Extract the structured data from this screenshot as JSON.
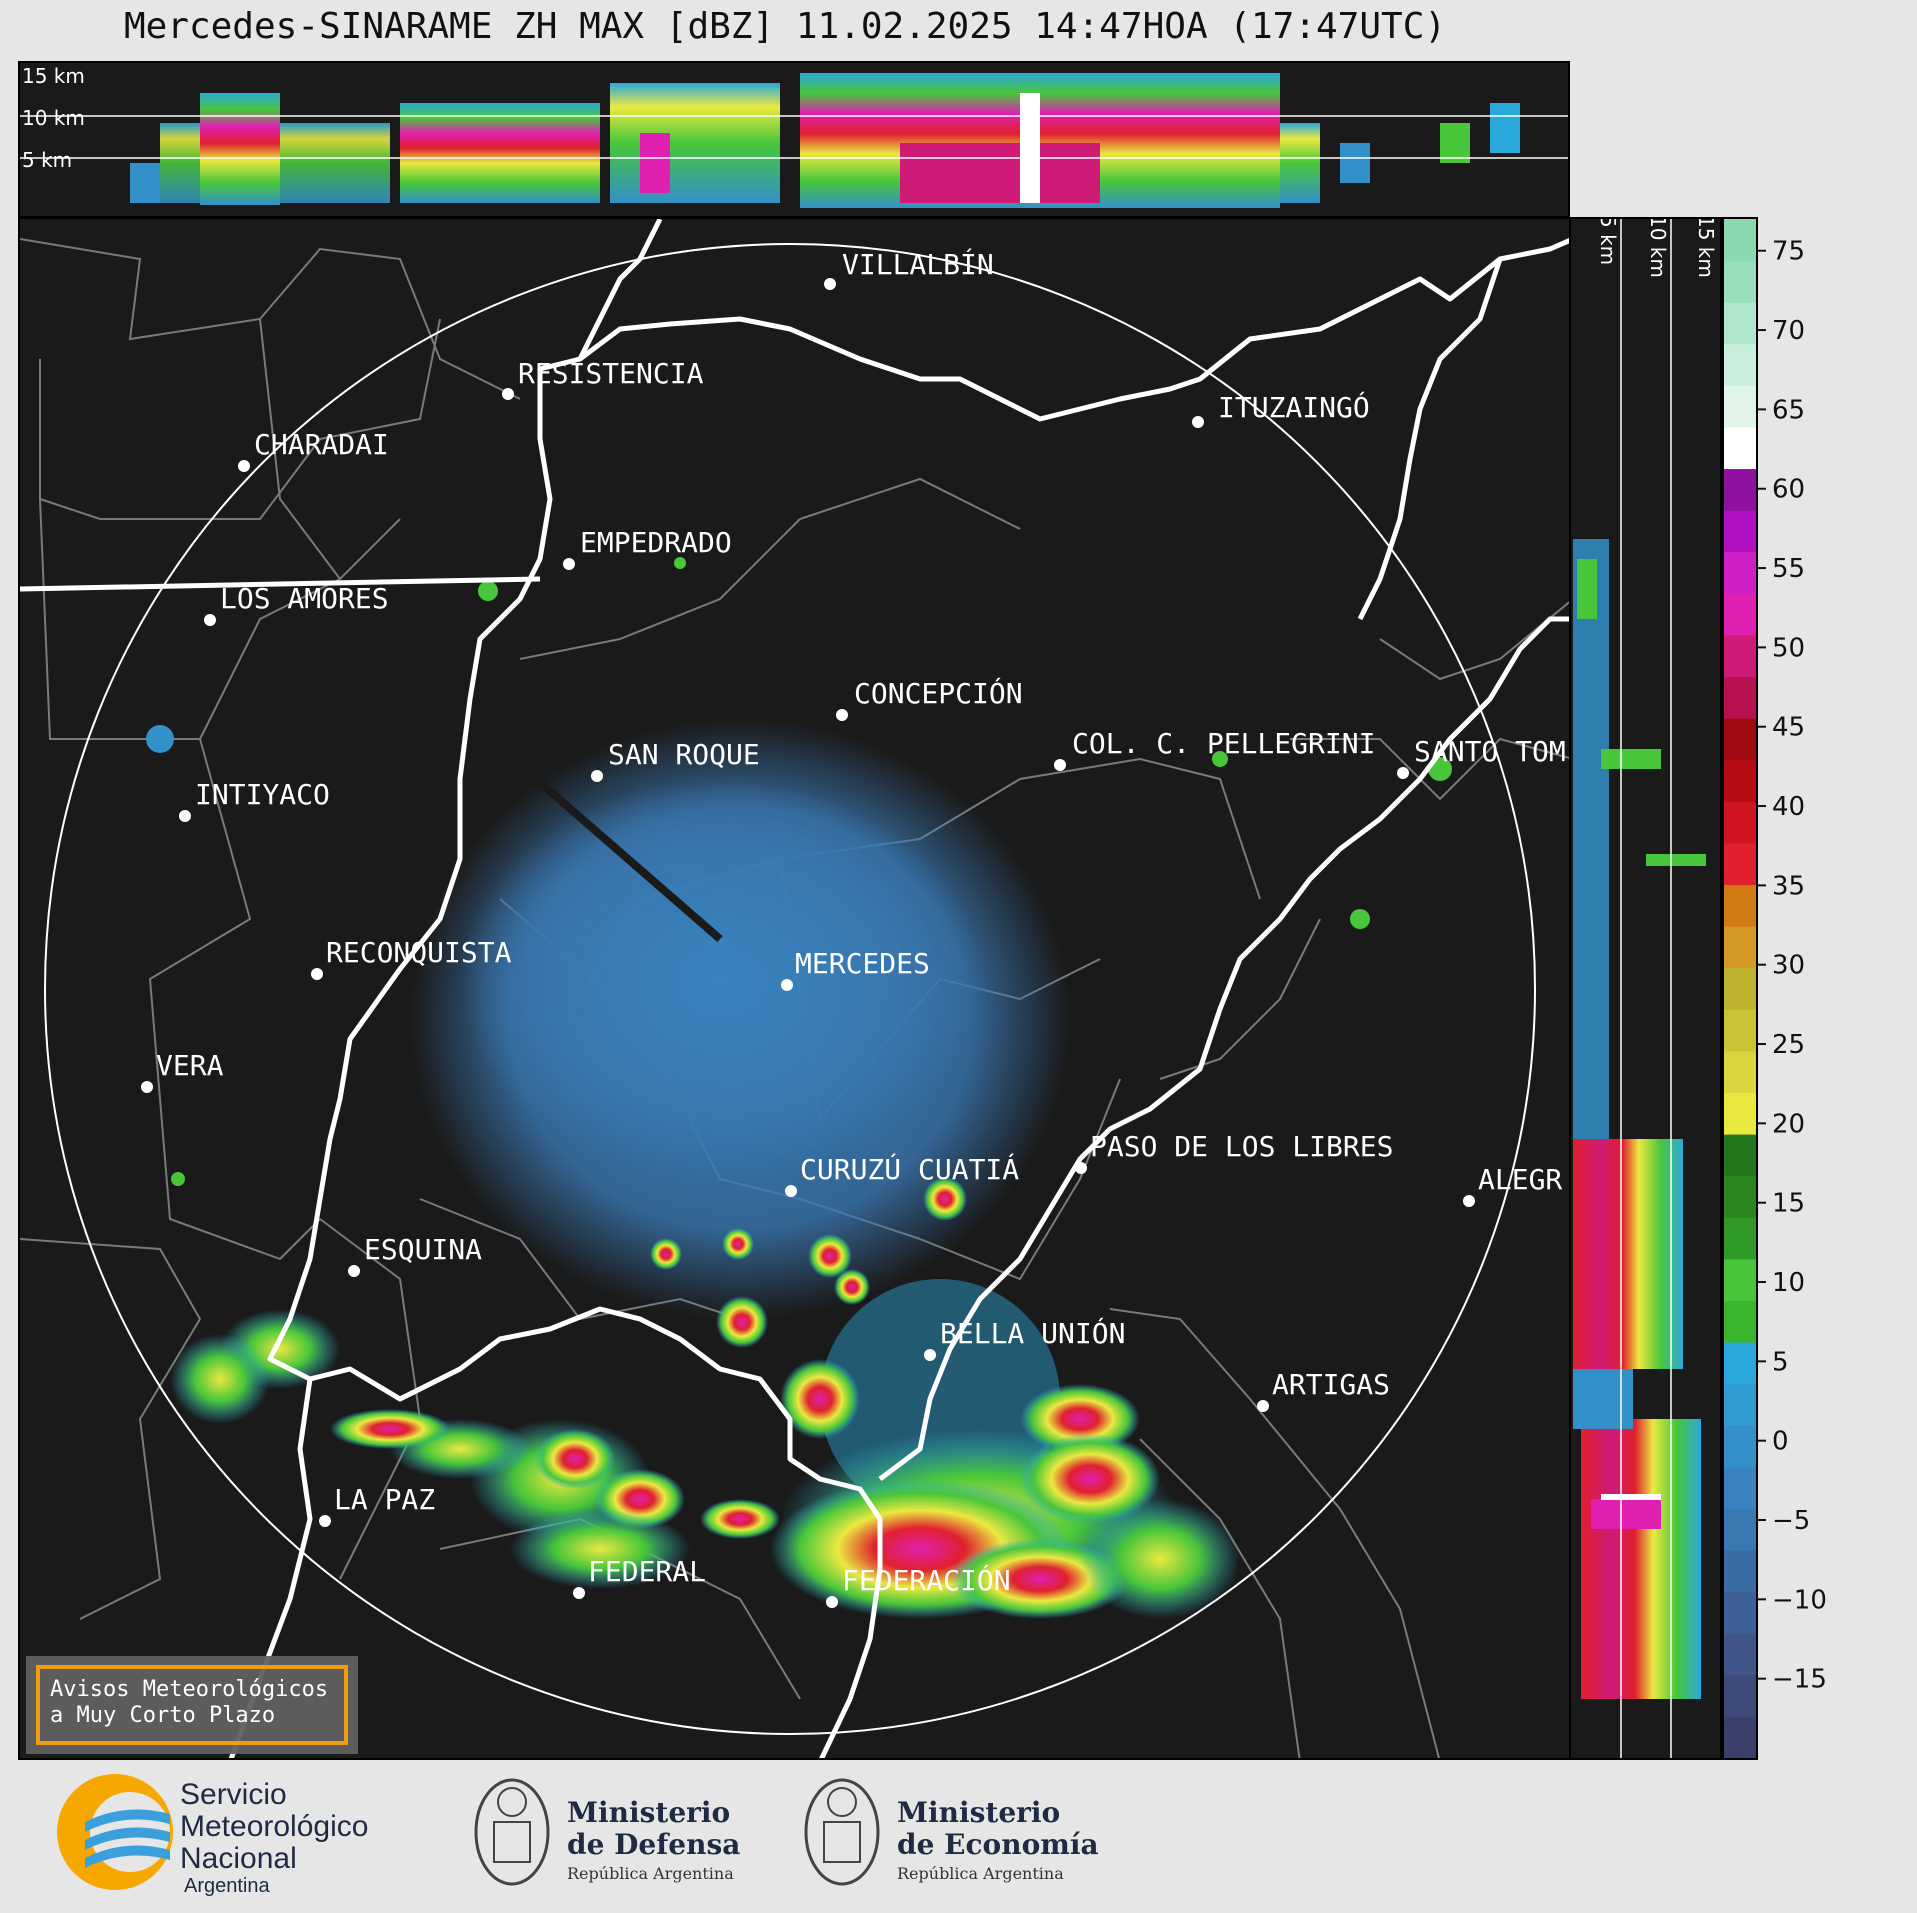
{
  "title": "Mercedes-SINARAME ZH MAX [dBZ] 11.02.2025 14:47HOA (17:47UTC)",
  "top_panel": {
    "altitude_labels": [
      "15 km",
      "10 km",
      "5 km"
    ]
  },
  "side_panel": {
    "altitude_labels": [
      "5 km",
      "10 km",
      "15 km"
    ]
  },
  "cities": [
    {
      "name": "VILLALBÍN"
    },
    {
      "name": "RESISTENCIA"
    },
    {
      "name": "CHARADAI"
    },
    {
      "name": "ITUZAINGÓ"
    },
    {
      "name": "EMPEDRADO"
    },
    {
      "name": "LOS AMORES"
    },
    {
      "name": "CONCEPCIÓN"
    },
    {
      "name": "COL. C. PELLEGRINI"
    },
    {
      "name": "SANTO TOM"
    },
    {
      "name": "SAN ROQUE"
    },
    {
      "name": "INTIYACO"
    },
    {
      "name": "MERCEDES"
    },
    {
      "name": "RECONQUISTA"
    },
    {
      "name": "VERA"
    },
    {
      "name": "PASO DE LOS LIBRES"
    },
    {
      "name": "CURUZÚ CUATIÁ"
    },
    {
      "name": "ALEGR"
    },
    {
      "name": "ESQUINA"
    },
    {
      "name": "BELLA UNIÓN"
    },
    {
      "name": "ARTIGAS"
    },
    {
      "name": "LA PAZ"
    },
    {
      "name": "FEDERAL"
    },
    {
      "name": "FEDERACIÓN"
    }
  ],
  "colorbar": {
    "ticks": [
      "75",
      "70",
      "65",
      "60",
      "55",
      "50",
      "45",
      "40",
      "35",
      "30",
      "25",
      "20",
      "15",
      "10",
      "5",
      "0",
      "−5",
      "−10",
      "−15"
    ],
    "colors": [
      "#3b3f6b",
      "#3e4a7a",
      "#40558a",
      "#3d6096",
      "#3a6ca4",
      "#3a78b2",
      "#3784c0",
      "#3390c9",
      "#2f9cd2",
      "#2aa8db",
      "#3ab52d",
      "#48c63a",
      "#2f9a24",
      "#2a8720",
      "#24751c",
      "#eae940",
      "#d9d640",
      "#c9c436",
      "#bcb22e",
      "#d49a24",
      "#d07a14",
      "#e0202e",
      "#d01420",
      "#b80c14",
      "#a00a10",
      "#b81050",
      "#cf1a78",
      "#e020b0",
      "#cf20c8",
      "#b010c0",
      "#9010a0",
      "#ffffff",
      "#e0f4ea",
      "#c9eedc",
      "#b0e6cc",
      "#98deba",
      "#88d8b0"
    ],
    "value_range": [
      -20,
      77
    ]
  },
  "warning_box": {
    "line1": "Avisos Meteorológicos",
    "line2": "a Muy Corto Plazo"
  },
  "footer": {
    "smn": {
      "line1": "Servicio",
      "line2": "Meteorológico",
      "line3": "Nacional",
      "line4": "Argentina"
    },
    "defensa": {
      "line1": "Ministerio",
      "line2": "de Defensa",
      "line3": "República Argentina"
    },
    "economia": {
      "line1": "Ministerio",
      "line2": "de Economía",
      "line3": "República Argentina"
    }
  }
}
